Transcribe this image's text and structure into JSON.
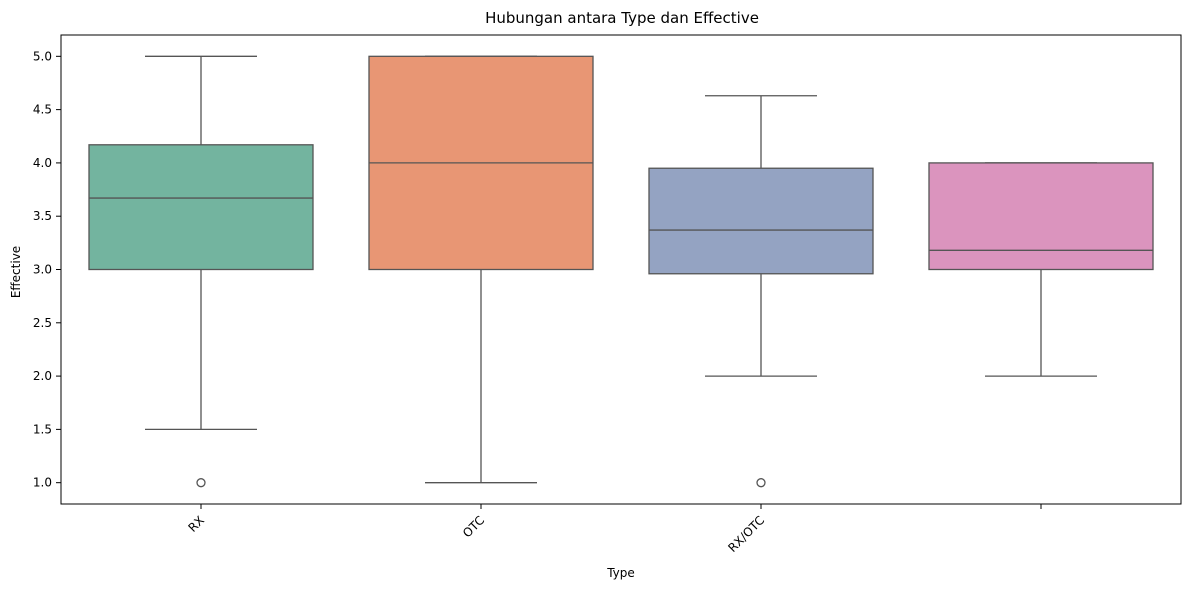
{
  "chart_data": {
    "type": "box",
    "title": "Hubungan antara Type dan Effective",
    "xlabel": "Type",
    "ylabel": "Effective",
    "ylim": [
      0.8,
      5.2
    ],
    "yticks": [
      1.0,
      1.5,
      2.0,
      2.5,
      3.0,
      3.5,
      4.0,
      4.5,
      5.0
    ],
    "ytick_labels": [
      "1.0",
      "1.5",
      "2.0",
      "2.5",
      "3.0",
      "3.5",
      "4.0",
      "4.5",
      "5.0"
    ],
    "grid": false,
    "legend": "none",
    "categories": [
      "RX",
      "OTC",
      "RX/OTC",
      ""
    ],
    "boxes": [
      {
        "category": "RX",
        "whisker_low": 1.5,
        "q1": 3.0,
        "median": 3.67,
        "q3": 4.17,
        "whisker_high": 5.0,
        "outliers": [
          1.0
        ],
        "color": "#73b49f"
      },
      {
        "category": "OTC",
        "whisker_low": 1.0,
        "q1": 3.0,
        "median": 4.0,
        "q3": 5.0,
        "whisker_high": 5.0,
        "outliers": [],
        "color": "#e89674"
      },
      {
        "category": "RX/OTC",
        "whisker_low": 2.0,
        "q1": 2.96,
        "median": 3.37,
        "q3": 3.95,
        "whisker_high": 4.63,
        "outliers": [
          1.0
        ],
        "color": "#94a3c2"
      },
      {
        "category": "",
        "whisker_low": 2.0,
        "q1": 3.0,
        "median": 3.18,
        "q3": 4.0,
        "whisker_high": 4.0,
        "outliers": [],
        "color": "#db94be"
      }
    ]
  }
}
